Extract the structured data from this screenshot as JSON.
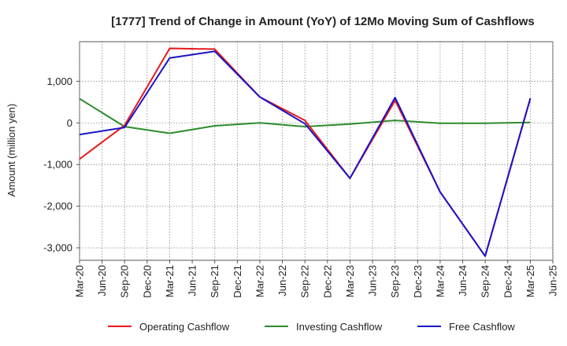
{
  "chart_data": {
    "type": "line",
    "title": "[1777]  Trend of Change in Amount (YoY) of 12Mo Moving Sum of Cashflows",
    "xlabel": "",
    "ylabel": "Amount (million yen)",
    "categories": [
      "Mar-20",
      "Jun-20",
      "Sep-20",
      "Dec-20",
      "Mar-21",
      "Jun-21",
      "Sep-21",
      "Dec-21",
      "Mar-22",
      "Jun-22",
      "Sep-22",
      "Dec-22",
      "Mar-23",
      "Jun-23",
      "Sep-23",
      "Dec-23",
      "Mar-24",
      "Jun-24",
      "Sep-24",
      "Dec-24",
      "Mar-25",
      "Jun-25"
    ],
    "ylim": [
      -3300,
      1950
    ],
    "yticks": [
      1000,
      0,
      -1000,
      -2000,
      -3000
    ],
    "ytick_labels": [
      "1,000",
      "0",
      "-1,000",
      "-2,000",
      "-3,000"
    ],
    "grid": true,
    "legend_position": "bottom",
    "series": [
      {
        "name": "Operating Cashflow",
        "color": "#e8191c",
        "x": [
          0,
          2,
          4,
          6,
          8,
          10,
          12,
          14,
          16,
          18,
          20
        ],
        "values": [
          -870,
          -60,
          1790,
          1770,
          620,
          60,
          -1330,
          540,
          -1660,
          -3200,
          580
        ]
      },
      {
        "name": "Investing Cashflow",
        "color": "#2e8b2e",
        "x": [
          0,
          2,
          4,
          6,
          8,
          10,
          12,
          14,
          16,
          18,
          20
        ],
        "values": [
          580,
          -90,
          -250,
          -70,
          0,
          -90,
          -30,
          60,
          -10,
          -10,
          10
        ]
      },
      {
        "name": "Free Cashflow",
        "color": "#1a14c8",
        "x": [
          0,
          2,
          4,
          6,
          8,
          10,
          12,
          14,
          16,
          18,
          20
        ],
        "values": [
          -280,
          -110,
          1560,
          1720,
          620,
          -20,
          -1330,
          610,
          -1660,
          -3200,
          590
        ]
      }
    ]
  }
}
